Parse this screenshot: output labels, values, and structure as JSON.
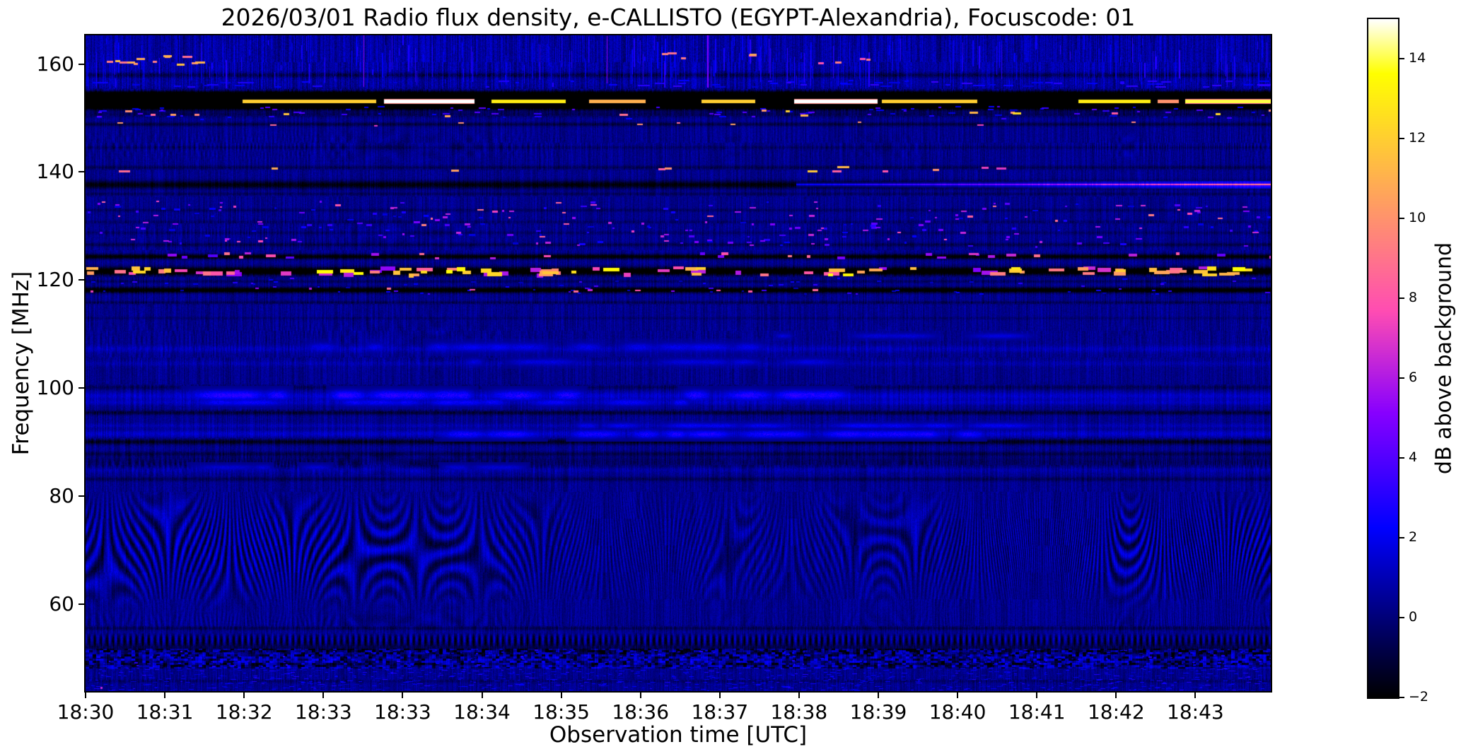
{
  "chart_data": {
    "type": "heatmap",
    "subtype": "radio-spectrogram",
    "title": "2026/03/01  Radio flux density, e-CALLISTO (EGYPT-Alexandria), Focuscode: 01",
    "xlabel": "Observation time [UTC]",
    "ylabel": "Frequency [MHz]",
    "meta": {
      "date": "2026/03/01",
      "quantity": "Radio flux density",
      "instrument": "e-CALLISTO",
      "station": "EGYPT-Alexandria",
      "focuscode": "01"
    },
    "grid": false,
    "ylim": [
      43.9,
      165.3
    ],
    "xlim_utc": [
      "18:30",
      "18:45"
    ],
    "x_ticks": [
      {
        "label": "18:30"
      },
      {
        "label": "18:31"
      },
      {
        "label": "18:32"
      },
      {
        "label": "18:33"
      },
      {
        "label": "18:33"
      },
      {
        "label": "18:34"
      },
      {
        "label": "18:35"
      },
      {
        "label": "18:36"
      },
      {
        "label": "18:37"
      },
      {
        "label": "18:38"
      },
      {
        "label": "18:39"
      },
      {
        "label": "18:40"
      },
      {
        "label": "18:41"
      },
      {
        "label": "18:42"
      },
      {
        "label": "18:43"
      }
    ],
    "y_ticks": [
      {
        "value": 160,
        "label": "160"
      },
      {
        "value": 140,
        "label": "140"
      },
      {
        "value": 120,
        "label": "120"
      },
      {
        "value": 100,
        "label": "100"
      },
      {
        "value": 80,
        "label": "80"
      },
      {
        "value": 60,
        "label": "60"
      }
    ],
    "colorbar": {
      "label": "dB above background",
      "range": [
        -2,
        15
      ],
      "colormap": "gnuplot2",
      "ticks": [
        {
          "value": 14,
          "label": "14"
        },
        {
          "value": 12,
          "label": "12"
        },
        {
          "value": 10,
          "label": "10"
        },
        {
          "value": 8,
          "label": "8"
        },
        {
          "value": 6,
          "label": "6"
        },
        {
          "value": 4,
          "label": "4"
        },
        {
          "value": 2,
          "label": "2"
        },
        {
          "value": 0,
          "label": "0"
        },
        {
          "value": -2,
          "label": "−2"
        }
      ],
      "stops": {
        "-2": "#000000",
        "0": "#000078",
        "2": "#0000f0",
        "4": "#5200ff",
        "6": "#b01ae6",
        "8": "#ff56a7",
        "10": "#ff926d",
        "12": "#ffcd31",
        "14": "#ffff42",
        "15": "#ffffff"
      }
    },
    "features": [
      {
        "kind": "rows",
        "items": [
          [
            158.0,
            0.45,
            -1.3
          ],
          [
            153.3,
            1.15,
            -14
          ],
          [
            150.7,
            0.5,
            -0.8
          ],
          [
            148.9,
            0.35,
            -1.2
          ],
          [
            144.6,
            0.3,
            -0.6
          ],
          [
            140.9,
            0.35,
            -0.9
          ],
          [
            137.7,
            0.7,
            -2.2
          ],
          [
            136.0,
            0.3,
            -0.8
          ],
          [
            133.0,
            0.3,
            -0.7
          ],
          [
            130.8,
            0.3,
            -0.6
          ],
          [
            128.8,
            0.3,
            -0.6
          ],
          [
            126.6,
            0.35,
            -1.0
          ],
          [
            124.4,
            0.45,
            -2.6
          ],
          [
            121.7,
            0.75,
            -3.2
          ],
          [
            119.8,
            0.3,
            -0.8
          ],
          [
            118.2,
            0.5,
            -3.0
          ],
          [
            115.9,
            0.3,
            -0.9
          ],
          [
            113.0,
            0.25,
            -0.5
          ],
          [
            100.2,
            0.4,
            -0.8
          ],
          [
            95.5,
            0.4,
            -1.4
          ],
          [
            90.1,
            0.5,
            -1.8
          ],
          [
            87.9,
            0.4,
            -1.0
          ],
          [
            86.4,
            1.1,
            -0.7
          ],
          [
            83.2,
            0.4,
            -0.9
          ],
          [
            55.6,
            0.35,
            -0.9
          ],
          [
            51.9,
            1.3,
            -1.0
          ],
          [
            48.9,
            0.3,
            -0.7
          ],
          [
            45.8,
            0.3,
            -0.6
          ],
          [
            107.3,
            0.6,
            0.7
          ],
          [
            104.6,
            0.5,
            0.5
          ],
          [
            98.6,
            0.7,
            1.0
          ],
          [
            97.4,
            0.5,
            0.8
          ],
          [
            91.6,
            0.6,
            1.0
          ],
          [
            93.1,
            0.4,
            0.6
          ],
          [
            84.9,
            0.5,
            0.5
          ]
        ]
      },
      {
        "kind": "chevron",
        "f0": 58.5,
        "f1": 82.0,
        "amp": 1.55,
        "lam": 13,
        "vper": 176,
        "slope": 0.5,
        "cross": false
      },
      {
        "kind": "chevron",
        "f0": 54.8,
        "f1": 59.0,
        "amp": 0.5,
        "lam": 9,
        "vper": 70,
        "slope": 0.4,
        "cross": false
      },
      {
        "kind": "chevron",
        "f0": 83.4,
        "f1": 88.6,
        "amp": 0.5,
        "lam": 8,
        "vper": 95,
        "slope": 0.5,
        "cross": true
      },
      {
        "kind": "chevron",
        "f0": 141.2,
        "f1": 148.4,
        "amp": 0.5,
        "lam": 9,
        "vper": 123,
        "slope": 0.55,
        "cross": true
      },
      {
        "kind": "chevron",
        "f0": 100.8,
        "f1": 117.2,
        "amp": 0.3,
        "lam": 7,
        "vper": 84,
        "slope": 0.5,
        "cross": true
      },
      {
        "kind": "chevron",
        "f0": 122.6,
        "f1": 135.2,
        "amp": 0.25,
        "lam": 7,
        "vper": 92,
        "slope": 0.5,
        "cross": true
      },
      {
        "kind": "chevron",
        "f0": 44.3,
        "f1": 48.2,
        "amp": 0.3,
        "lam": 6,
        "vper": 62,
        "slope": 0.4,
        "cross": true
      },
      {
        "kind": "comb",
        "f0": 52.2,
        "f1": 54.7,
        "period": 8.5,
        "amp": 1.6
      },
      {
        "kind": "checker",
        "f0": 48.3,
        "f1": 51.7,
        "cw": 5,
        "ch": 3,
        "amp": 2.0
      },
      {
        "kind": "speckles",
        "f0": 44.0,
        "f1": 48.2,
        "n": 900,
        "v": [
          0.8,
          3.0
        ],
        "w": [
          3,
          9
        ],
        "h": [
          1,
          2
        ]
      },
      {
        "kind": "speckles",
        "f0": 48.4,
        "f1": 51.6,
        "n": 300,
        "v": [
          1.0,
          3.2
        ],
        "w": [
          2,
          6
        ],
        "h": [
          1,
          3
        ]
      },
      {
        "kind": "speckles",
        "f0": 126.3,
        "f1": 134.6,
        "n": 240,
        "v": [
          1.5,
          6.5
        ],
        "w": [
          3,
          10
        ],
        "h": [
          2,
          4
        ],
        "hot": 0.16,
        "hotv": [
          6,
          9.5
        ]
      },
      {
        "kind": "speckles",
        "f0": 117.4,
        "f1": 120.5,
        "n": 80,
        "v": [
          1,
          4
        ],
        "w": [
          3,
          8
        ],
        "h": [
          2,
          3
        ]
      },
      {
        "kind": "speckles",
        "f0": 155.8,
        "f1": 157.0,
        "n": 70,
        "v": [
          1.5,
          3.5
        ],
        "w": [
          5,
          18
        ],
        "h": [
          2,
          3
        ]
      },
      {
        "kind": "speckles",
        "f0": 149.8,
        "f1": 152.3,
        "n": 90,
        "v": [
          1.5,
          4.2
        ],
        "w": [
          4,
          12
        ],
        "h": [
          2,
          3
        ]
      },
      {
        "kind": "vstreaks",
        "f0": 155.4,
        "f1": 165.3,
        "n": 320,
        "v": [
          0.7,
          3.2
        ]
      },
      {
        "kind": "vstreaks",
        "f0": 156.0,
        "f1": 165.3,
        "n": 3,
        "v": [
          4.5,
          6.2
        ],
        "xs": [
          0.235,
          0.44,
          0.525
        ]
      },
      {
        "kind": "dots",
        "f0": 150.4,
        "f1": 151.6,
        "n": 16,
        "v": [
          8,
          13
        ],
        "w": [
          6,
          14
        ],
        "h": [
          3,
          4
        ]
      },
      {
        "kind": "dots",
        "f0": 148.6,
        "f1": 149.3,
        "n": 10,
        "v": [
          6,
          11
        ],
        "w": [
          5,
          10
        ],
        "h": [
          2,
          3
        ]
      },
      {
        "kind": "dots",
        "f0": 139.9,
        "f1": 141.2,
        "n": 12,
        "v": [
          7,
          12
        ],
        "w": [
          8,
          18
        ],
        "h": [
          3,
          4
        ],
        "x0": 0,
        "x1": 0.78
      },
      {
        "kind": "dots",
        "f0": 160.0,
        "f1": 161.7,
        "n": 13,
        "v": [
          7,
          13
        ],
        "w": [
          6,
          15
        ],
        "h": [
          3,
          4
        ],
        "x0": 0.012,
        "x1": 0.095
      },
      {
        "kind": "dots",
        "f0": 160.2,
        "f1": 162.2,
        "n": 9,
        "v": [
          6,
          11
        ],
        "w": [
          6,
          14
        ],
        "h": [
          3,
          4
        ],
        "x0": 0.47,
        "x1": 0.66
      },
      {
        "kind": "dots",
        "f0": 124.1,
        "f1": 125.1,
        "n": 30,
        "v": [
          4,
          9.5
        ],
        "w": [
          5,
          15
        ],
        "h": [
          3,
          5
        ]
      },
      {
        "kind": "dots",
        "f0": 117.9,
        "f1": 118.6,
        "n": 12,
        "v": [
          5,
          10
        ],
        "w": [
          4,
          9
        ],
        "h": [
          2,
          4
        ],
        "x0": 0,
        "x1": 0.62
      },
      {
        "kind": "dots",
        "f0": 44.2,
        "f1": 44.9,
        "n": 1,
        "v": [
          6,
          7
        ],
        "w": [
          3,
          4
        ],
        "h": [
          3,
          4
        ],
        "x0": 0.008,
        "x1": 0.02
      },
      {
        "kind": "blobs",
        "f0": 121.1,
        "f1": 122.5,
        "n": 95,
        "v": [
          5,
          14
        ],
        "w": [
          7,
          24
        ],
        "h": [
          4,
          7
        ]
      },
      {
        "kind": "fuzzy",
        "f": 98.6,
        "hw": 0.9,
        "v": 2.6,
        "x0": 0.0,
        "x1": 0.62,
        "n": 26
      },
      {
        "kind": "fuzzy",
        "f": 97.3,
        "hw": 0.6,
        "v": 2.0,
        "x0": 0.05,
        "x1": 0.5,
        "n": 14
      },
      {
        "kind": "fuzzy",
        "f": 91.5,
        "hw": 0.7,
        "v": 2.4,
        "x0": 0.25,
        "x1": 0.78,
        "n": 20
      },
      {
        "kind": "fuzzy",
        "f": 93.0,
        "hw": 0.5,
        "v": 1.8,
        "x0": 0.4,
        "x1": 0.75,
        "n": 12
      },
      {
        "kind": "fuzzy",
        "f": 107.5,
        "hw": 0.8,
        "v": 1.6,
        "x0": 0.15,
        "x1": 0.55,
        "n": 14
      },
      {
        "kind": "fuzzy",
        "f": 104.8,
        "hw": 0.6,
        "v": 1.4,
        "x0": 0.3,
        "x1": 0.62,
        "n": 8
      },
      {
        "kind": "fuzzy",
        "f": 109.6,
        "hw": 0.5,
        "v": 1.3,
        "x0": 0.55,
        "x1": 0.76,
        "n": 6
      },
      {
        "kind": "fuzzy",
        "f": 85.3,
        "hw": 0.5,
        "v": 1.2,
        "x0": 0.08,
        "x1": 0.36,
        "n": 6
      },
      {
        "kind": "segments",
        "f": 153.15,
        "segs": [
          [
            0.133,
            0.245,
            12
          ],
          [
            0.252,
            0.328,
            15
          ],
          [
            0.343,
            0.405,
            13
          ],
          [
            0.425,
            0.472,
            11
          ],
          [
            0.52,
            0.565,
            12
          ],
          [
            0.598,
            0.668,
            15
          ],
          [
            0.672,
            0.752,
            12
          ],
          [
            0.838,
            0.898,
            13
          ],
          [
            0.905,
            0.922,
            10
          ],
          [
            0.928,
            1.0,
            14
          ]
        ]
      },
      {
        "kind": "glowline",
        "f": 137.68,
        "x0": 0.6,
        "v0": 2.2,
        "v1": 9.0
      }
    ]
  }
}
